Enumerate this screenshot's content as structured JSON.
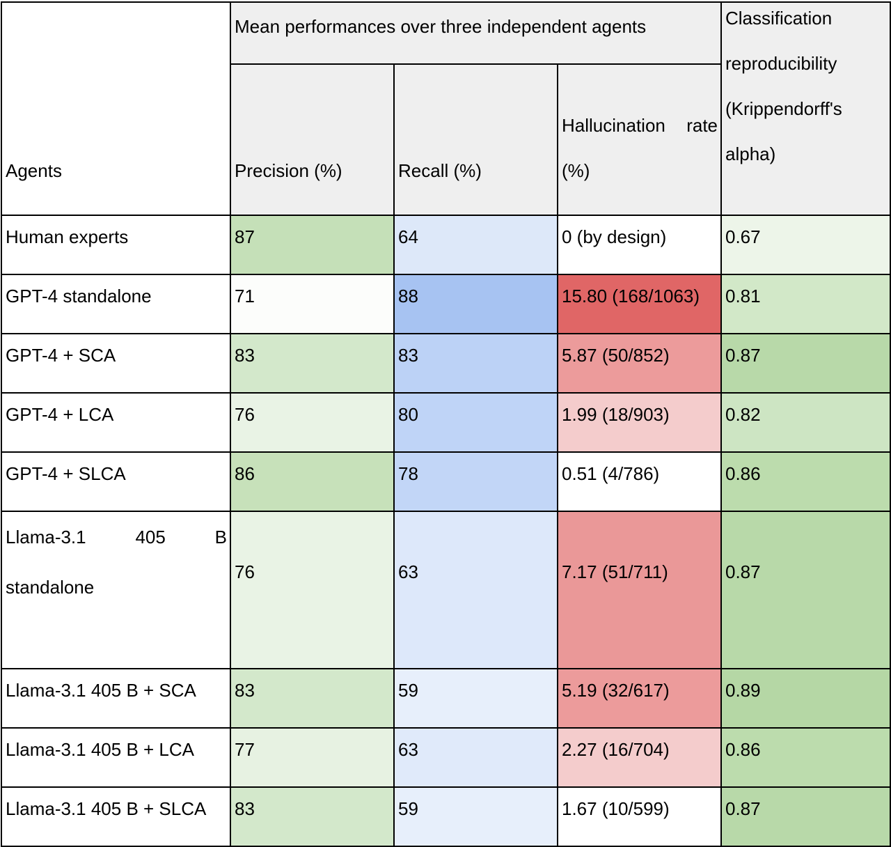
{
  "table": {
    "header": {
      "agents_label": "Agents",
      "group_label": "Mean performances over three independent agents",
      "precision_label": "Precision (%)",
      "recall_label": "Recall (%)",
      "hallucination_label_line1": "Hallucination rate",
      "hallucination_label_line2": "(%)",
      "alpha_label_line1": "Classification",
      "alpha_label_line2": "reproducibility",
      "alpha_label_line3": "(Krippendorff's",
      "alpha_label_line4": "alpha)"
    },
    "rows": [
      {
        "agent": "Human experts",
        "precision": "87",
        "recall": "64",
        "hallucination": "0 (by design)",
        "alpha": "0.67",
        "colors": {
          "precision": "#c5e0b8",
          "recall": "#dde8f9",
          "hallucination": "#ffffff",
          "alpha": "#edf5e9"
        }
      },
      {
        "agent": "GPT-4 standalone",
        "precision": "71",
        "recall": "88",
        "hallucination": "15.80 (168/1063)",
        "alpha": "0.81",
        "colors": {
          "precision": "#fcfdfb",
          "recall": "#a7c3f2",
          "hallucination": "#e06666",
          "alpha": "#d2e8c8"
        }
      },
      {
        "agent": "GPT-4 + SCA",
        "precision": "83",
        "recall": "83",
        "hallucination": "5.87 (50/852)",
        "alpha": "0.87",
        "colors": {
          "precision": "#d3e8cb",
          "recall": "#bcd2f6",
          "hallucination": "#ec9b9b",
          "alpha": "#b8d9a9"
        }
      },
      {
        "agent": "GPT-4 + LCA",
        "precision": "76",
        "recall": "80",
        "hallucination": "1.99 (18/903)",
        "alpha": "0.82",
        "colors": {
          "precision": "#e9f3e5",
          "recall": "#bfd4f7",
          "hallucination": "#f4cccc",
          "alpha": "#cde5c3"
        }
      },
      {
        "agent": "GPT-4 + SLCA",
        "precision": "86",
        "recall": "78",
        "hallucination": "0.51 (4/786)",
        "alpha": "0.86",
        "colors": {
          "precision": "#c7e1ba",
          "recall": "#c2d6f7",
          "hallucination": "#ffffff",
          "alpha": "#bcdcad"
        }
      },
      {
        "agent_line1": "Llama-3.1 405 B",
        "agent_line2": "standalone",
        "precision": "76",
        "recall": "63",
        "hallucination": "7.17 (51/711)",
        "alpha": "0.87",
        "colors": {
          "precision": "#e9f3e5",
          "recall": "#dde8fa",
          "hallucination": "#ea9898",
          "alpha": "#b8d9a9"
        }
      },
      {
        "agent": "Llama-3.1 405 B + SCA",
        "precision": "83",
        "recall": "59",
        "hallucination": "5.19 (32/617)",
        "alpha": "0.89",
        "colors": {
          "precision": "#d3e8cb",
          "recall": "#e7effb",
          "hallucination": "#ec9b9b",
          "alpha": "#b5d7a5"
        }
      },
      {
        "agent": "Llama-3.1 405 B + LCA",
        "precision": "77",
        "recall": "63",
        "hallucination": "2.27 (16/704)",
        "alpha": "0.86",
        "colors": {
          "precision": "#e7f2e2",
          "recall": "#e0eafa",
          "hallucination": "#f4cccc",
          "alpha": "#bcdcad"
        }
      },
      {
        "agent": "Llama-3.1 405 B + SLCA",
        "precision": "83",
        "recall": "59",
        "hallucination": "1.67 (10/599)",
        "alpha": "0.87",
        "colors": {
          "precision": "#d3e8cb",
          "recall": "#e7effb",
          "hallucination": "#ffffff",
          "alpha": "#b8d9a9"
        }
      }
    ]
  }
}
